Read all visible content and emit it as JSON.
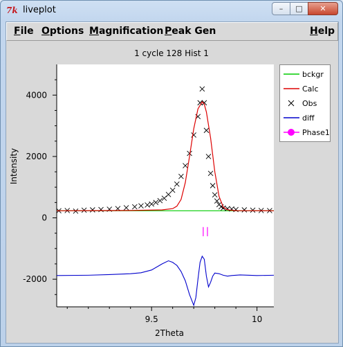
{
  "window": {
    "title": "liveplot",
    "icon": "tk-feather-icon",
    "controls": [
      "minimize-icon",
      "maximize-icon",
      "close-icon"
    ]
  },
  "menu": {
    "file": "File",
    "options": "Options",
    "magnification": "Magnification",
    "peak_gen": "Peak Gen",
    "help": "Help"
  },
  "plot": {
    "title": "1 cycle 128 Hist 1"
  },
  "legend": [
    {
      "label": "bckgr",
      "color": "#00cc00",
      "marker": "line"
    },
    {
      "label": "Calc",
      "color": "#dd0000",
      "marker": "line"
    },
    {
      "label": "Obs",
      "color": "#000000",
      "marker": "x"
    },
    {
      "label": "diff",
      "color": "#0000cc",
      "marker": "line"
    },
    {
      "label": "Phase1",
      "color": "#ff00ff",
      "marker": "circle"
    }
  ],
  "chart_data": {
    "type": "line",
    "title": "1 cycle 128 Hist 1",
    "xlabel": "2Theta",
    "ylabel": "Intensity",
    "xlim": [
      9.05,
      10.08
    ],
    "ylim": [
      -2900,
      5000
    ],
    "x_ticks": [
      9.5,
      10
    ],
    "x_tick_labels": [
      "9.5",
      "10"
    ],
    "y_ticks": [
      -2000,
      0,
      2000,
      4000
    ],
    "y_tick_labels": [
      "-2000",
      "0",
      "2000",
      "4000"
    ],
    "background_level": 230,
    "series": [
      {
        "name": "Calc",
        "color": "#dd0000",
        "x": [
          9.05,
          9.4,
          9.55,
          9.6,
          9.62,
          9.64,
          9.66,
          9.68,
          9.7,
          9.72,
          9.74,
          9.75,
          9.76,
          9.78,
          9.8,
          9.82,
          9.84,
          9.86,
          9.9,
          10.08
        ],
        "y": [
          230,
          240,
          260,
          300,
          380,
          600,
          1150,
          2000,
          2900,
          3550,
          3780,
          3700,
          3450,
          2600,
          1500,
          700,
          350,
          260,
          235,
          230
        ]
      },
      {
        "name": "Obs",
        "color": "#000000",
        "x": [
          9.06,
          9.1,
          9.14,
          9.18,
          9.22,
          9.26,
          9.3,
          9.34,
          9.38,
          9.42,
          9.45,
          9.48,
          9.5,
          9.52,
          9.54,
          9.56,
          9.58,
          9.6,
          9.62,
          9.64,
          9.66,
          9.68,
          9.7,
          9.72,
          9.73,
          9.74,
          9.75,
          9.76,
          9.77,
          9.78,
          9.79,
          9.8,
          9.81,
          9.82,
          9.83,
          9.84,
          9.86,
          9.88,
          9.9,
          9.94,
          9.98,
          10.02,
          10.06
        ],
        "y": [
          230,
          240,
          220,
          250,
          260,
          270,
          280,
          300,
          330,
          360,
          390,
          420,
          450,
          500,
          560,
          640,
          760,
          900,
          1100,
          1350,
          1700,
          2100,
          2700,
          3300,
          3750,
          4200,
          3750,
          2850,
          2000,
          1450,
          1050,
          750,
          550,
          430,
          360,
          320,
          300,
          290,
          270,
          260,
          250,
          240,
          235
        ]
      },
      {
        "name": "diff",
        "color": "#0000cc",
        "x": [
          9.05,
          9.2,
          9.3,
          9.4,
          9.45,
          9.5,
          9.55,
          9.58,
          9.6,
          9.62,
          9.64,
          9.66,
          9.68,
          9.7,
          9.71,
          9.72,
          9.73,
          9.74,
          9.75,
          9.76,
          9.77,
          9.78,
          9.79,
          9.8,
          9.82,
          9.84,
          9.86,
          9.88,
          9.92,
          10.0,
          10.08
        ],
        "y": [
          -1880,
          -1870,
          -1850,
          -1820,
          -1790,
          -1700,
          -1500,
          -1400,
          -1450,
          -1550,
          -1750,
          -2050,
          -2500,
          -2850,
          -2600,
          -2000,
          -1450,
          -1250,
          -1350,
          -1900,
          -2250,
          -2100,
          -1900,
          -1800,
          -1820,
          -1870,
          -1900,
          -1880,
          -1860,
          -1880,
          -1870
        ]
      },
      {
        "name": "bckgr",
        "color": "#00cc00",
        "x": [
          9.05,
          10.08
        ],
        "y": [
          230,
          230
        ]
      }
    ],
    "reflection_ticks": {
      "name": "Phase1",
      "color": "#ff00ff",
      "x": [
        9.745,
        9.765
      ],
      "y_range": [
        -600,
        -300
      ]
    }
  }
}
